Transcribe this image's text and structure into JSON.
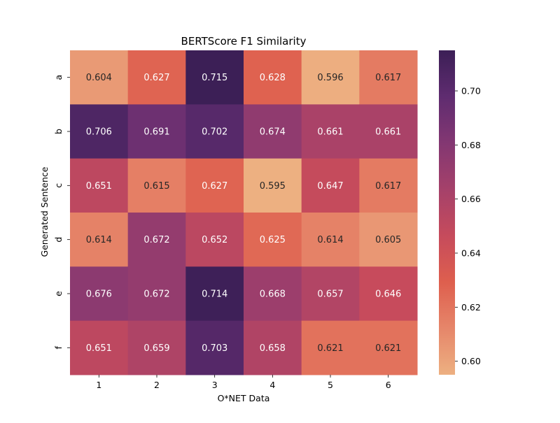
{
  "chart_data": {
    "type": "heatmap",
    "title": "BERTScore F1 Similarity",
    "xlabel": "O*NET Data",
    "ylabel": "Generated Sentence",
    "x_categories": [
      "1",
      "2",
      "3",
      "4",
      "5",
      "6"
    ],
    "y_categories": [
      "a",
      "b",
      "c",
      "d",
      "e",
      "f"
    ],
    "values": [
      [
        0.604,
        0.627,
        0.715,
        0.628,
        0.596,
        0.617
      ],
      [
        0.706,
        0.691,
        0.702,
        0.674,
        0.661,
        0.661
      ],
      [
        0.651,
        0.615,
        0.627,
        0.595,
        0.647,
        0.617
      ],
      [
        0.614,
        0.672,
        0.652,
        0.625,
        0.614,
        0.605
      ],
      [
        0.676,
        0.672,
        0.714,
        0.668,
        0.657,
        0.646
      ],
      [
        0.651,
        0.659,
        0.703,
        0.658,
        0.621,
        0.621
      ]
    ],
    "cell_labels": [
      [
        "0.604",
        "0.627",
        "0.715",
        "0.628",
        "0.596",
        "0.617"
      ],
      [
        "0.706",
        "0.691",
        "0.702",
        "0.674",
        "0.661",
        "0.661"
      ],
      [
        "0.651",
        "0.615",
        "0.627",
        "0.595",
        "0.647",
        "0.617"
      ],
      [
        "0.614",
        "0.672",
        "0.652",
        "0.625",
        "0.614",
        "0.605"
      ],
      [
        "0.676",
        "0.672",
        "0.714",
        "0.668",
        "0.657",
        "0.646"
      ],
      [
        "0.651",
        "0.659",
        "0.703",
        "0.658",
        "0.621",
        "0.621"
      ]
    ],
    "colorbar": {
      "vmin": 0.595,
      "vmax": 0.715,
      "ticks": [
        0.6,
        0.62,
        0.64,
        0.66,
        0.68,
        0.7
      ],
      "tick_labels": [
        "0.60",
        "0.62",
        "0.64",
        "0.66",
        "0.68",
        "0.70"
      ]
    },
    "colormap": "flare",
    "colormap_stops": [
      "#edb081",
      "#e6866a",
      "#de5f4e",
      "#c64b5c",
      "#a5416a",
      "#833772",
      "#5f2c70",
      "#3c1f56"
    ],
    "annotation_colors": {
      "light_bg_text": "#262626",
      "dark_bg_text": "#ffffff"
    },
    "grid": false,
    "legend": "colorbar-right"
  }
}
